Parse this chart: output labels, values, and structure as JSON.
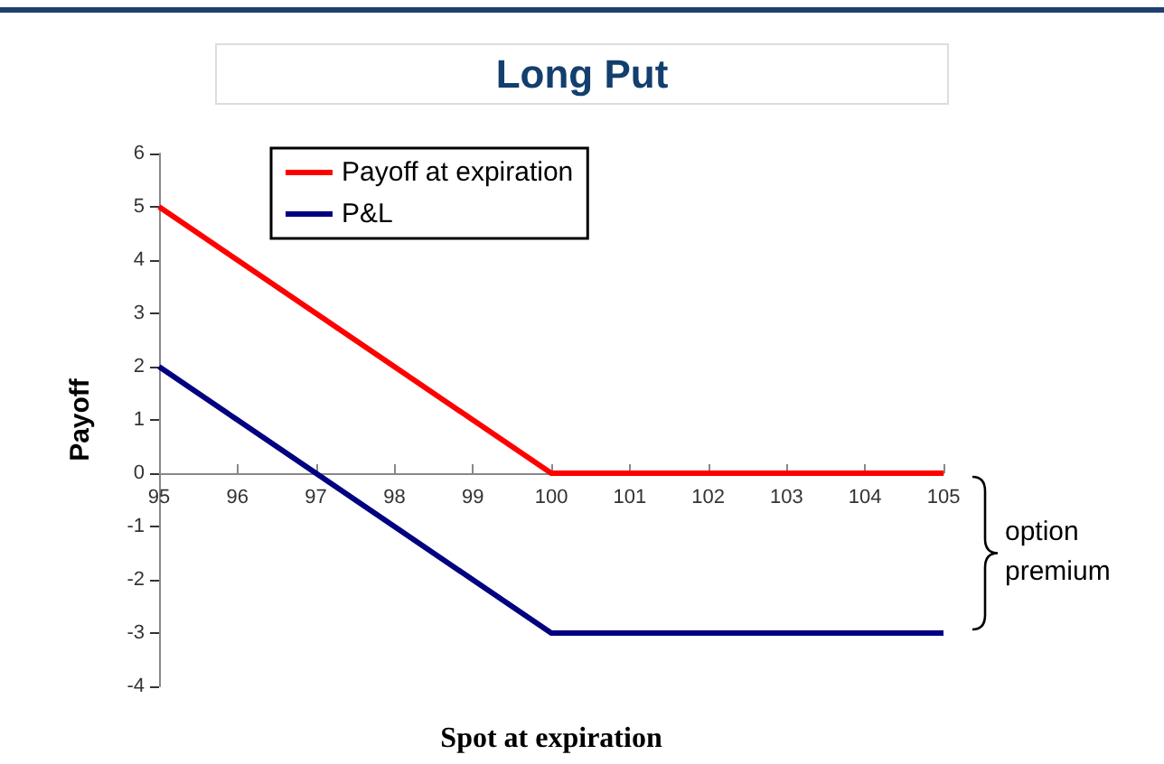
{
  "chart_data": {
    "type": "line",
    "title": "Long Put",
    "xlabel": "Spot at expiration",
    "ylabel": "Payoff",
    "categories": [
      "95",
      "96",
      "97",
      "98",
      "99",
      "100",
      "101",
      "102",
      "103",
      "104",
      "105"
    ],
    "series": [
      {
        "name": "Payoff at expiration",
        "color": "#ff0000",
        "values": [
          5,
          4,
          3,
          2,
          1,
          0,
          0,
          0,
          0,
          0,
          0
        ]
      },
      {
        "name": "P&L",
        "color": "#000080",
        "values": [
          2,
          1,
          0,
          -1,
          -2,
          -3,
          -3,
          -3,
          -3,
          -3,
          -3
        ]
      }
    ],
    "ylim": [
      -4,
      6
    ],
    "yticks": [
      -4,
      -3,
      -2,
      -1,
      0,
      1,
      2,
      3,
      4,
      5,
      6
    ],
    "grid": false,
    "legend": "top left",
    "marker": "none",
    "line_style": "solid",
    "annotations": [
      "option premium"
    ]
  }
}
